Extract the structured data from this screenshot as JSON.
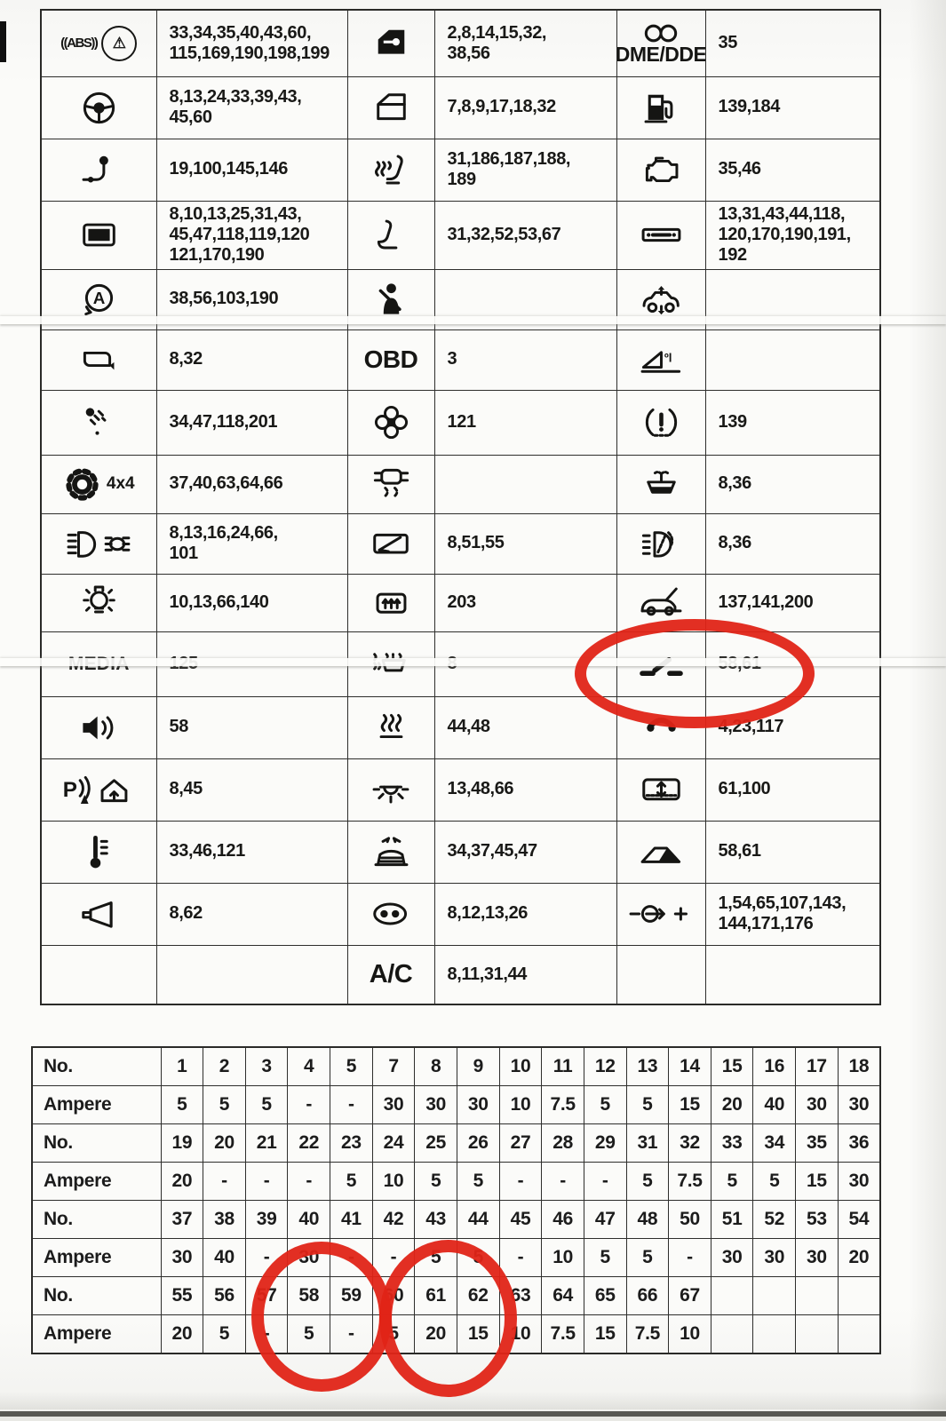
{
  "colors": {
    "annotation_red": "#e02417",
    "table_line": "#2e2e2c",
    "ink": "#161614",
    "paper": "#fbfbf9"
  },
  "legend": {
    "rows": [
      [
        {
          "icon": "abs-brake",
          "label": "((ABS))",
          "fuses": "33,34,35,40,43,60,\n115,169,190,198,199"
        },
        {
          "icon": "door-lock-key",
          "label": "",
          "fuses": "2,8,14,15,32,\n38,56"
        },
        {
          "icon": "dme-coil",
          "label": "DME/DDE",
          "fuses": "35"
        }
      ],
      [
        {
          "icon": "steering-wheel",
          "label": "",
          "fuses": "8,13,24,33,39,43,\n45,60"
        },
        {
          "icon": "door-window",
          "label": "",
          "fuses": "7,8,9,17,18,32"
        },
        {
          "icon": "fuel-pump",
          "label": "",
          "fuses": "139,184"
        }
      ],
      [
        {
          "icon": "trailer-hitch",
          "label": "",
          "fuses": "19,100,145,146"
        },
        {
          "icon": "heated-seat",
          "label": "",
          "fuses": "31,186,187,188,\n189"
        },
        {
          "icon": "check-engine",
          "label": "",
          "fuses": "35,46"
        }
      ],
      [
        {
          "icon": "display-screen",
          "label": "",
          "fuses": "8,10,13,25,31,43,\n45,47,118,119,120\n121,170,190"
        },
        {
          "icon": "seat-adjust",
          "label": "",
          "fuses": "31,32,52,53,67"
        },
        {
          "icon": "radio-unit",
          "label": "",
          "fuses": "13,31,43,44,118,\n120,170,190,191,\n192"
        }
      ],
      [
        {
          "icon": "auto-start-stop",
          "label": "",
          "fuses": "38,56,103,190"
        },
        {
          "icon": "seatbelt",
          "label": "",
          "fuses": ""
        },
        {
          "icon": "ride-height",
          "label": "",
          "fuses": ""
        }
      ],
      [
        {
          "icon": "mirror",
          "label": "",
          "fuses": "8,32"
        },
        {
          "icon": "",
          "label": "OBD",
          "fuses": "3"
        },
        {
          "icon": "oil-slope",
          "label": "",
          "fuses": ""
        }
      ],
      [
        {
          "icon": "rain-sensor",
          "label": "",
          "fuses": "34,47,118,201"
        },
        {
          "icon": "fan",
          "label": "",
          "fuses": "121"
        },
        {
          "icon": "tire-pressure",
          "label": "",
          "fuses": "139"
        }
      ],
      [
        {
          "icon": "gear-4x4",
          "label": "4x4",
          "fuses": "37,40,63,64,66"
        },
        {
          "icon": "dsc",
          "label": "",
          "fuses": ""
        },
        {
          "icon": "windshield-washer",
          "label": "",
          "fuses": "8,36"
        }
      ],
      [
        {
          "icon": "headlights",
          "label": "",
          "fuses": "8,13,16,24,66,\n101"
        },
        {
          "icon": "wiper",
          "label": "",
          "fuses": "8,51,55"
        },
        {
          "icon": "headlight-washer",
          "label": "",
          "fuses": "8,36"
        }
      ],
      [
        {
          "icon": "light-bulb",
          "label": "",
          "fuses": "10,13,66,140"
        },
        {
          "icon": "rear-defrost",
          "label": "",
          "fuses": "203"
        },
        {
          "icon": "tailgate-open",
          "label": "",
          "fuses": "137,141,200"
        }
      ],
      [
        {
          "icon": "",
          "label": "MEDIA",
          "fuses": "125"
        },
        {
          "icon": "heated-washer-jets",
          "label": "",
          "fuses": "8"
        },
        {
          "icon": "roof-switch",
          "label": "",
          "fuses": "58,61"
        }
      ],
      [
        {
          "icon": "speaker",
          "label": "",
          "fuses": "58"
        },
        {
          "icon": "heater",
          "label": "",
          "fuses": "44,48"
        },
        {
          "icon": "phone",
          "label": "",
          "fuses": "4,23,117"
        }
      ],
      [
        {
          "icon": "park-distance-garage",
          "label": "",
          "fuses": "8,45"
        },
        {
          "icon": "interior-light",
          "label": "",
          "fuses": "13,48,66"
        },
        {
          "icon": "sunroof-slide",
          "label": "",
          "fuses": "61,100"
        }
      ],
      [
        {
          "icon": "thermometer",
          "label": "",
          "fuses": "33,46,121"
        },
        {
          "icon": "convertible-top",
          "label": "",
          "fuses": "34,37,45,47"
        },
        {
          "icon": "sunroof-tilt",
          "label": "",
          "fuses": "58,61"
        }
      ],
      [
        {
          "icon": "horn",
          "label": "",
          "fuses": "8,62"
        },
        {
          "icon": "fog-lamp",
          "label": "",
          "fuses": "8,12,13,26"
        },
        {
          "icon": "battery-charge",
          "label": "",
          "fuses": "1,54,65,107,143,\n144,171,176"
        }
      ],
      [
        {
          "icon": "",
          "label": "",
          "fuses": ""
        },
        {
          "icon": "",
          "label": "A/C",
          "fuses": "8,11,31,44"
        },
        {
          "icon": "",
          "label": "",
          "fuses": ""
        }
      ]
    ]
  },
  "fuse_table": {
    "rows": [
      {
        "label": "No.",
        "type": "no",
        "values": [
          "1",
          "2",
          "3",
          "4",
          "5",
          "7",
          "8",
          "9",
          "10",
          "11",
          "12",
          "13",
          "14",
          "15",
          "16",
          "17",
          "18"
        ]
      },
      {
        "label": "Ampere",
        "type": "amp",
        "values": [
          "5",
          "5",
          "5",
          "-",
          "-",
          "30",
          "30",
          "30",
          "10",
          "7.5",
          "5",
          "5",
          "15",
          "20",
          "40",
          "30",
          "30"
        ]
      },
      {
        "label": "No.",
        "type": "no",
        "values": [
          "19",
          "20",
          "21",
          "22",
          "23",
          "24",
          "25",
          "26",
          "27",
          "28",
          "29",
          "31",
          "32",
          "33",
          "34",
          "35",
          "36"
        ]
      },
      {
        "label": "Ampere",
        "type": "amp",
        "values": [
          "20",
          "-",
          "-",
          "-",
          "5",
          "10",
          "5",
          "5",
          "-",
          "-",
          "-",
          "5",
          "7.5",
          "5",
          "5",
          "15",
          "30"
        ]
      },
      {
        "label": "No.",
        "type": "no",
        "values": [
          "37",
          "38",
          "39",
          "40",
          "41",
          "42",
          "43",
          "44",
          "45",
          "46",
          "47",
          "48",
          "50",
          "51",
          "52",
          "53",
          "54"
        ]
      },
      {
        "label": "Ampere",
        "type": "amp",
        "values": [
          "30",
          "40",
          "-",
          "30",
          "-",
          "-",
          "5",
          "5",
          "-",
          "10",
          "5",
          "5",
          "-",
          "30",
          "30",
          "30",
          "20"
        ]
      },
      {
        "label": "No.",
        "type": "no",
        "values": [
          "55",
          "56",
          "57",
          "58",
          "59",
          "60",
          "61",
          "62",
          "63",
          "64",
          "65",
          "66",
          "67",
          "",
          "",
          "",
          ""
        ]
      },
      {
        "label": "Ampere",
        "type": "amp",
        "values": [
          "20",
          "5",
          "-",
          "5",
          "-",
          "5",
          "20",
          "15",
          "10",
          "7.5",
          "15",
          "7.5",
          "10",
          "",
          "",
          "",
          ""
        ]
      }
    ]
  },
  "annotations": {
    "circled_legend": "roof-switch 58,61",
    "circled_fuse_1": "58",
    "circled_fuse_2": "61"
  }
}
